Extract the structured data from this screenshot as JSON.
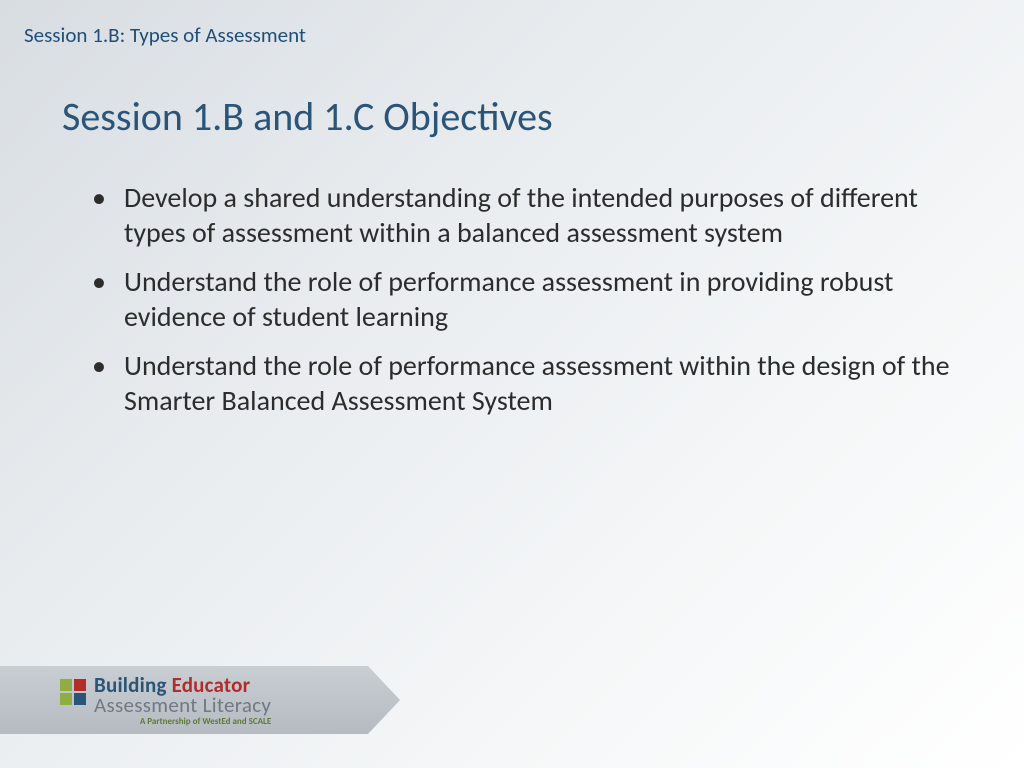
{
  "header": {
    "session_label": "Session 1.B: Types of Assessment"
  },
  "title": "Session 1.B and 1.C Objectives",
  "bullets": [
    "Develop a shared understanding of the intended purposes of different types of assessment within a balanced assessment system",
    "Understand the role of performance assessment in providing robust evidence of student learning",
    "Understand the role of performance assessment within the design of the Smarter Balanced Assessment System"
  ],
  "footer_logo": {
    "line1_a": "Building ",
    "line1_b": "Educator",
    "line2": "Assessment Literacy",
    "line3": "A Partnership of WestEd and SCALE",
    "squares": [
      "#8fae3f",
      "#b22c2c",
      "#8fae3f",
      "#2a5578"
    ],
    "line1_a_color": "#2a5578",
    "line1_b_color": "#b22c2c",
    "line3_color": "#5a7a3a"
  },
  "styling": {
    "background_gradient": [
      "#d8dde2",
      "#e8ecef",
      "#f5f7f8",
      "#ffffff"
    ],
    "session_label_color": "#1f4e79",
    "title_color": "#2a5578",
    "bullet_text_color": "#2c2c2c",
    "banner_gradient": [
      "#c9ced3",
      "#b5bbc1"
    ],
    "session_label_fontsize": 21,
    "title_fontsize": 40,
    "bullet_fontsize": 28
  }
}
